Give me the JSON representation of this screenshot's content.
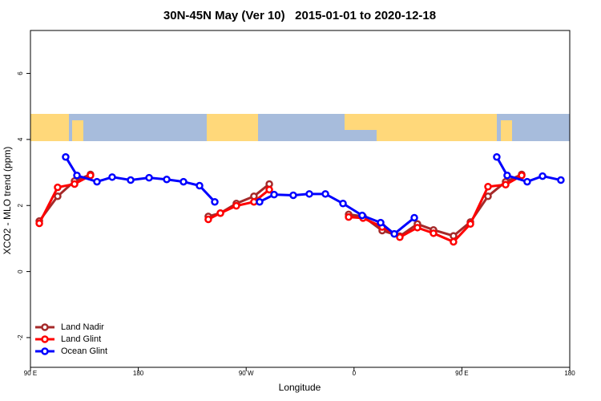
{
  "chart_data": {
    "type": "line",
    "title": "30N-45N May (Ver 10)   2015-01-01 to 2020-12-18",
    "x_label": "Longitude",
    "y_label": "XCO2 - MLO trend (ppm)",
    "xlim": [
      90,
      540
    ],
    "xticks": [
      {
        "value": 90,
        "label": "90 E"
      },
      180,
      {
        "value": 270,
        "label": "90 W"
      },
      {
        "value": 360,
        "label": "0"
      },
      {
        "value": 450,
        "label": "90 E"
      },
      {
        "value": 540,
        "label": "180"
      }
    ],
    "ylim": [
      -2.9,
      7.3
    ],
    "yticks": [
      -2,
      0,
      2,
      4,
      6
    ],
    "legend": "bottom-left",
    "series": [
      {
        "name": "Land Nadir",
        "color": "#a52a2a",
        "x": [
          97.4,
          112.7,
          126.8,
          140.1,
          null,
          238.4,
          248.5,
          261.8,
          276.5,
          289.3,
          null,
          355.5,
          367.5,
          383.5,
          398.2,
          412.9,
          426.3,
          443,
          457.1,
          471.8,
          486.5,
          499.9
        ],
        "values": [
          1.53,
          2.28,
          2.74,
          2.94,
          null,
          1.67,
          1.77,
          2.06,
          2.28,
          2.65,
          null,
          1.73,
          1.67,
          1.24,
          1.07,
          1.44,
          1.26,
          1.08,
          1.5,
          2.28,
          2.72,
          2.94
        ]
      },
      {
        "name": "Land Glint",
        "color": "#ff0000",
        "x": [
          97.4,
          112.7,
          126.8,
          140.1,
          null,
          238.4,
          248.5,
          261.8,
          276.5,
          289.3,
          null,
          355.5,
          367.5,
          383.5,
          398.2,
          412.9,
          426.3,
          443,
          457.1,
          471.8,
          486.5,
          499.9
        ],
        "values": [
          1.46,
          2.55,
          2.65,
          2.91,
          null,
          1.58,
          1.77,
          1.99,
          2.11,
          2.48,
          null,
          1.65,
          1.62,
          1.35,
          1.04,
          1.33,
          1.16,
          0.9,
          1.44,
          2.57,
          2.63,
          2.91
        ]
      },
      {
        "name": "Ocean Glint",
        "color": "#0000ff",
        "x": [
          119.4,
          128.8,
          145.5,
          158.2,
          173.6,
          189,
          203.7,
          217.7,
          231.1,
          243.8,
          null,
          281.2,
          293.3,
          309.3,
          322.7,
          336.1,
          350.8,
          366.8,
          382.2,
          393.6,
          410.3,
          null,
          479.1,
          487.8,
          504.5,
          517.3,
          532.6
        ],
        "values": [
          3.47,
          2.91,
          2.72,
          2.86,
          2.77,
          2.84,
          2.79,
          2.72,
          2.6,
          2.11,
          null,
          2.11,
          2.33,
          2.31,
          2.35,
          2.35,
          2.06,
          1.7,
          1.48,
          1.14,
          1.63,
          null,
          3.47,
          2.91,
          2.72,
          2.89,
          2.77
        ]
      }
    ]
  }
}
